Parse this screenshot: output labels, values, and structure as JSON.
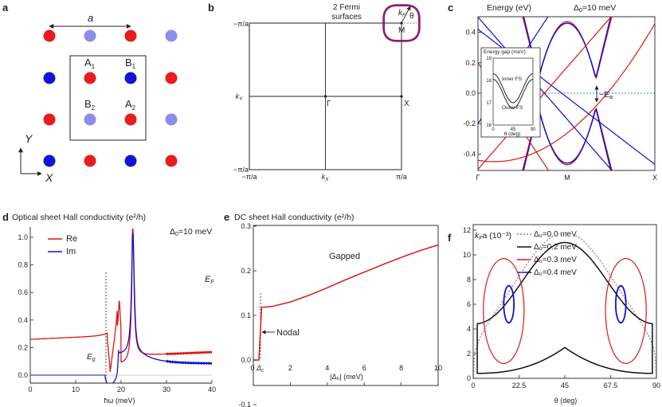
{
  "panels": {
    "a": {
      "letter": "a",
      "lattice_const": "a",
      "labels": [
        "A",
        "B",
        "B",
        "A"
      ],
      "subs": [
        "1",
        "1",
        "2",
        "2"
      ],
      "axis_x": "X",
      "axis_y": "Y"
    },
    "b": {
      "letter": "b",
      "fermi_label_1": "2 Fermi",
      "fermi_label_2": "surfaces",
      "k": "k",
      "k_sub": "F",
      "theta": "θ",
      "M": "M",
      "Gamma": "Γ",
      "X": "X",
      "ky": "k",
      "ky_sub": "Y",
      "kx": "k",
      "kx_sub": "X",
      "pi_over_a": "π/a",
      "neg_pi_over_a": "−π/a"
    },
    "c": {
      "letter": "c",
      "ylabel": "Energy (eV)",
      "delta": "Δ",
      "delta_sub": "0",
      "delta_val": "=10 meV",
      "Ea": "~E",
      "Ea_sub": "a",
      "inset_title": "Energy gap (meV)",
      "inner": "Inner FS",
      "outer": "Outer FS",
      "inset_xlabel": "θ (deg)"
    },
    "d": {
      "letter": "d",
      "title": "Optical sheet Hall conductivity (e²/h)",
      "delta": "Δ",
      "delta_sub": "0",
      "delta_val": "=10 meV",
      "EF": "E",
      "EF_sub": "F",
      "Eg": "E",
      "Eg_sub": "g",
      "xlabel": "ħω (meV)"
    },
    "e": {
      "letter": "e",
      "title": "DC sheet Hall conductivity (e²/h)",
      "gapped": "Gapped",
      "nodal": "Nodal",
      "xlabel": "|Δ₀| (meV)",
      "deltac": "Δ",
      "deltac_sub": "c"
    },
    "f": {
      "letter": "f",
      "ylabel": "k",
      "ylabel_sub": "F",
      "ylabel_rest": "a (10⁻³)",
      "xlabel": "θ (deg)"
    }
  },
  "chart_data": [
    {
      "panel": "c",
      "type": "line",
      "ylabel": "Energy (eV)",
      "ylim": [
        -0.5,
        0.5
      ],
      "yticks": [
        "0.4",
        "0.2",
        "0.0",
        "-0.2",
        "-0.4"
      ],
      "xticks": [
        "Γ",
        "M",
        "X"
      ],
      "colors": {
        "particle": "#1010d0",
        "hole": "#d81818",
        "fermi": "#3a7fd8"
      }
    },
    {
      "panel": "c-inset",
      "type": "line",
      "ylim": [
        16,
        19
      ],
      "yticks": [
        "19",
        "18",
        "17",
        "16"
      ],
      "xticks": [
        "0",
        "45",
        "90"
      ],
      "series": [
        {
          "name": "Inner FS",
          "x": [
            0,
            22.5,
            45,
            67.5,
            90
          ],
          "y": [
            18.3,
            17.0,
            18.3,
            17.0,
            18.3
          ]
        },
        {
          "name": "Outer FS",
          "x": [
            0,
            22.5,
            45,
            67.5,
            90
          ],
          "y": [
            18.05,
            16.75,
            18.05,
            16.75,
            18.05
          ]
        }
      ]
    },
    {
      "panel": "d",
      "type": "line",
      "xlim": [
        0,
        40
      ],
      "ylim": [
        -0.1,
        1.05
      ],
      "xticks": [
        "0",
        "10",
        "20",
        "30",
        "40"
      ],
      "yticks": [
        "0.0",
        "0.2",
        "0.4",
        "0.6",
        "0.8",
        "1.0"
      ],
      "series": [
        {
          "name": "Re",
          "color": "#d81818"
        },
        {
          "name": "Im",
          "color": "#1010d0"
        }
      ]
    },
    {
      "panel": "e",
      "type": "line",
      "xlim": [
        0,
        10
      ],
      "ylim": [
        -0.1,
        0.3
      ],
      "xticks": [
        "0",
        "2",
        "4",
        "6",
        "8",
        "10"
      ],
      "yticks": [
        "0.3",
        "0.2",
        "0.1",
        "0.0",
        "-0.1"
      ],
      "series": [
        {
          "name": "Gapped",
          "x": [
            0,
            0.3,
            0.45,
            1,
            2,
            3,
            4,
            5,
            6,
            7,
            8,
            9,
            10
          ],
          "y": [
            0.0,
            0.0,
            0.118,
            0.12,
            0.13,
            0.145,
            0.162,
            0.18,
            0.197,
            0.214,
            0.23,
            0.245,
            0.258
          ]
        }
      ]
    },
    {
      "panel": "f",
      "type": "line",
      "xlim": [
        0,
        90
      ],
      "ylim": [
        0,
        12
      ],
      "xticks": [
        "0",
        "22.5",
        "45",
        "67.5",
        "90"
      ],
      "yticks": [
        "0",
        "2",
        "4",
        "6",
        "8",
        "10",
        "12"
      ],
      "series": [
        {
          "name": "Δ₀=0.0 meV",
          "color": "#888888",
          "style": "dotted"
        },
        {
          "name": "Δ₀=0.2 meV",
          "color": "#111111"
        },
        {
          "name": "Δ₀=0.3 meV",
          "color": "#d81818"
        },
        {
          "name": "Δ₀=0.4 meV",
          "color": "#1010d0"
        }
      ]
    }
  ]
}
